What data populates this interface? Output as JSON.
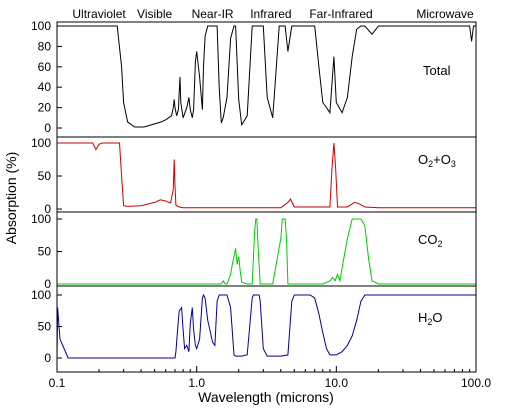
{
  "chart_data": {
    "type": "line",
    "xlabel": "Wavelength (microns)",
    "ylabel": "Absorption (%)",
    "x_scale": "log",
    "xlim": [
      0.1,
      100
    ],
    "x_ticks": [
      {
        "value": 0.1,
        "label": "0.1"
      },
      {
        "value": 1,
        "label": "1.0"
      },
      {
        "value": 10,
        "label": "10.0"
      },
      {
        "value": 100,
        "label": "100.0"
      }
    ],
    "grid": false,
    "band_labels": [
      {
        "label": "Ultraviolet",
        "x": 0.2
      },
      {
        "label": "Visible",
        "x": 0.5
      },
      {
        "label": "Near-IR",
        "x": 1.3
      },
      {
        "label": "Infrared",
        "x": 3.4
      },
      {
        "label": "Far-Infrared",
        "x": 10.8
      },
      {
        "label": "Microwave",
        "x": 60
      }
    ],
    "panels": [
      {
        "name": "Total",
        "label_main": "Total",
        "label_sub": "",
        "color": "#000000",
        "ylim": [
          0,
          100
        ],
        "yticks": [
          0,
          20,
          40,
          60,
          80,
          100
        ],
        "x": [
          0.1,
          0.27,
          0.29,
          0.3,
          0.32,
          0.36,
          0.42,
          0.5,
          0.56,
          0.6,
          0.63,
          0.66,
          0.68,
          0.69,
          0.7,
          0.72,
          0.74,
          0.75,
          0.76,
          0.77,
          0.8,
          0.82,
          0.85,
          0.88,
          0.9,
          0.93,
          0.95,
          0.98,
          1.0,
          1.05,
          1.1,
          1.12,
          1.15,
          1.2,
          1.3,
          1.35,
          1.4,
          1.45,
          1.5,
          1.55,
          1.65,
          1.75,
          1.85,
          1.9,
          2.0,
          2.1,
          2.3,
          2.5,
          2.7,
          2.8,
          3.0,
          3.2,
          3.5,
          3.7,
          3.9,
          4.0,
          4.2,
          4.3,
          4.5,
          4.8,
          5.0,
          5.5,
          6.0,
          6.5,
          7.0,
          7.5,
          8.0,
          8.5,
          9.0,
          9.6,
          10.0,
          11.0,
          12.0,
          13.0,
          14.0,
          15.0,
          16.0,
          18.0,
          20.0,
          30.0,
          50.0,
          90.0,
          93.0,
          96.0,
          100.0
        ],
        "y": [
          100,
          100,
          60,
          25,
          6,
          1,
          1,
          4,
          6,
          8,
          10,
          12,
          20,
          28,
          20,
          12,
          18,
          35,
          50,
          25,
          10,
          14,
          20,
          30,
          18,
          10,
          18,
          65,
          75,
          50,
          18,
          60,
          90,
          100,
          100,
          100,
          100,
          40,
          5,
          10,
          30,
          88,
          100,
          100,
          28,
          3,
          12,
          100,
          100,
          100,
          100,
          30,
          10,
          55,
          100,
          100,
          100,
          100,
          75,
          100,
          100,
          100,
          100,
          100,
          100,
          60,
          25,
          20,
          15,
          70,
          25,
          15,
          30,
          70,
          97,
          100,
          100,
          92,
          100,
          100,
          100,
          100,
          85,
          100,
          100
        ]
      },
      {
        "name": "O2+O3",
        "label_main": "O",
        "label_sub": "2",
        "label_main2": "+O",
        "label_sub2": "3",
        "color": "#cc0000",
        "ylim": [
          0,
          100
        ],
        "yticks": [
          0,
          50,
          100
        ],
        "x": [
          0.1,
          0.18,
          0.19,
          0.2,
          0.21,
          0.28,
          0.29,
          0.3,
          0.32,
          0.4,
          0.5,
          0.55,
          0.6,
          0.65,
          0.68,
          0.69,
          0.7,
          0.71,
          0.72,
          0.75,
          0.8,
          1.0,
          2.0,
          4.0,
          4.5,
          4.7,
          5.0,
          8.0,
          9.0,
          9.3,
          9.6,
          9.9,
          10.2,
          11.0,
          12.0,
          13.5,
          14.5,
          16.0,
          20.0,
          100.0
        ],
        "y": [
          100,
          100,
          90,
          98,
          100,
          100,
          50,
          5,
          4,
          5,
          10,
          14,
          12,
          9,
          30,
          75,
          35,
          6,
          5,
          3,
          2,
          2,
          2,
          2,
          10,
          15,
          3,
          3,
          3,
          60,
          100,
          60,
          3,
          3,
          3,
          10,
          8,
          3,
          2,
          2
        ]
      },
      {
        "name": "CO2",
        "label_main": "CO",
        "label_sub": "2",
        "color": "#00cc00",
        "ylim": [
          0,
          100
        ],
        "yticks": [
          0,
          50,
          100
        ],
        "x": [
          0.1,
          1.3,
          1.5,
          1.55,
          1.6,
          1.65,
          1.75,
          1.8,
          1.9,
          1.95,
          2.0,
          2.05,
          2.1,
          2.3,
          2.5,
          2.6,
          2.65,
          2.7,
          2.75,
          2.85,
          3.0,
          3.5,
          4.0,
          4.1,
          4.2,
          4.3,
          4.4,
          4.5,
          4.6,
          5.0,
          7.0,
          8.0,
          9.0,
          9.4,
          9.8,
          10.2,
          10.6,
          11.0,
          12.0,
          13.0,
          14.0,
          15.0,
          16.0,
          17.0,
          18.0,
          20.0,
          100.0
        ],
        "y": [
          0,
          0,
          0,
          5,
          0,
          0,
          15,
          30,
          55,
          30,
          42,
          20,
          3,
          0,
          0,
          80,
          100,
          100,
          60,
          0,
          0,
          0,
          70,
          100,
          100,
          100,
          70,
          0,
          0,
          0,
          0,
          0,
          5,
          10,
          5,
          15,
          5,
          25,
          70,
          100,
          100,
          100,
          90,
          40,
          5,
          0,
          0
        ]
      },
      {
        "name": "H2O",
        "label_main": "H",
        "label_sub": "2",
        "label_main2": "O",
        "color": "#000099",
        "ylim": [
          0,
          100
        ],
        "yticks": [
          0,
          50,
          100
        ],
        "x": [
          0.1,
          0.101,
          0.105,
          0.12,
          0.7,
          0.71,
          0.73,
          0.75,
          0.78,
          0.8,
          0.82,
          0.85,
          0.88,
          0.9,
          0.93,
          0.95,
          0.98,
          1.0,
          1.05,
          1.1,
          1.12,
          1.15,
          1.2,
          1.3,
          1.35,
          1.4,
          1.45,
          1.5,
          1.55,
          1.65,
          1.75,
          1.85,
          1.9,
          2.0,
          2.1,
          2.3,
          2.5,
          2.55,
          2.6,
          2.7,
          2.8,
          2.85,
          3.0,
          3.2,
          3.5,
          4.0,
          4.5,
          4.8,
          5.0,
          5.5,
          6.0,
          6.5,
          7.0,
          7.5,
          8.0,
          8.5,
          9.0,
          10.0,
          11.0,
          12.0,
          13.0,
          14.0,
          15.0,
          16.0,
          17.0,
          20.0,
          100.0
        ],
        "y": [
          0,
          80,
          30,
          0,
          0,
          10,
          45,
          75,
          80,
          45,
          15,
          20,
          10,
          55,
          80,
          45,
          20,
          15,
          30,
          95,
          100,
          95,
          60,
          25,
          20,
          90,
          100,
          100,
          100,
          100,
          80,
          5,
          3,
          3,
          3,
          5,
          95,
          100,
          100,
          100,
          100,
          90,
          15,
          3,
          3,
          3,
          5,
          90,
          100,
          100,
          100,
          100,
          95,
          70,
          40,
          15,
          5,
          5,
          10,
          20,
          35,
          60,
          90,
          100,
          100,
          100,
          100
        ]
      }
    ]
  }
}
